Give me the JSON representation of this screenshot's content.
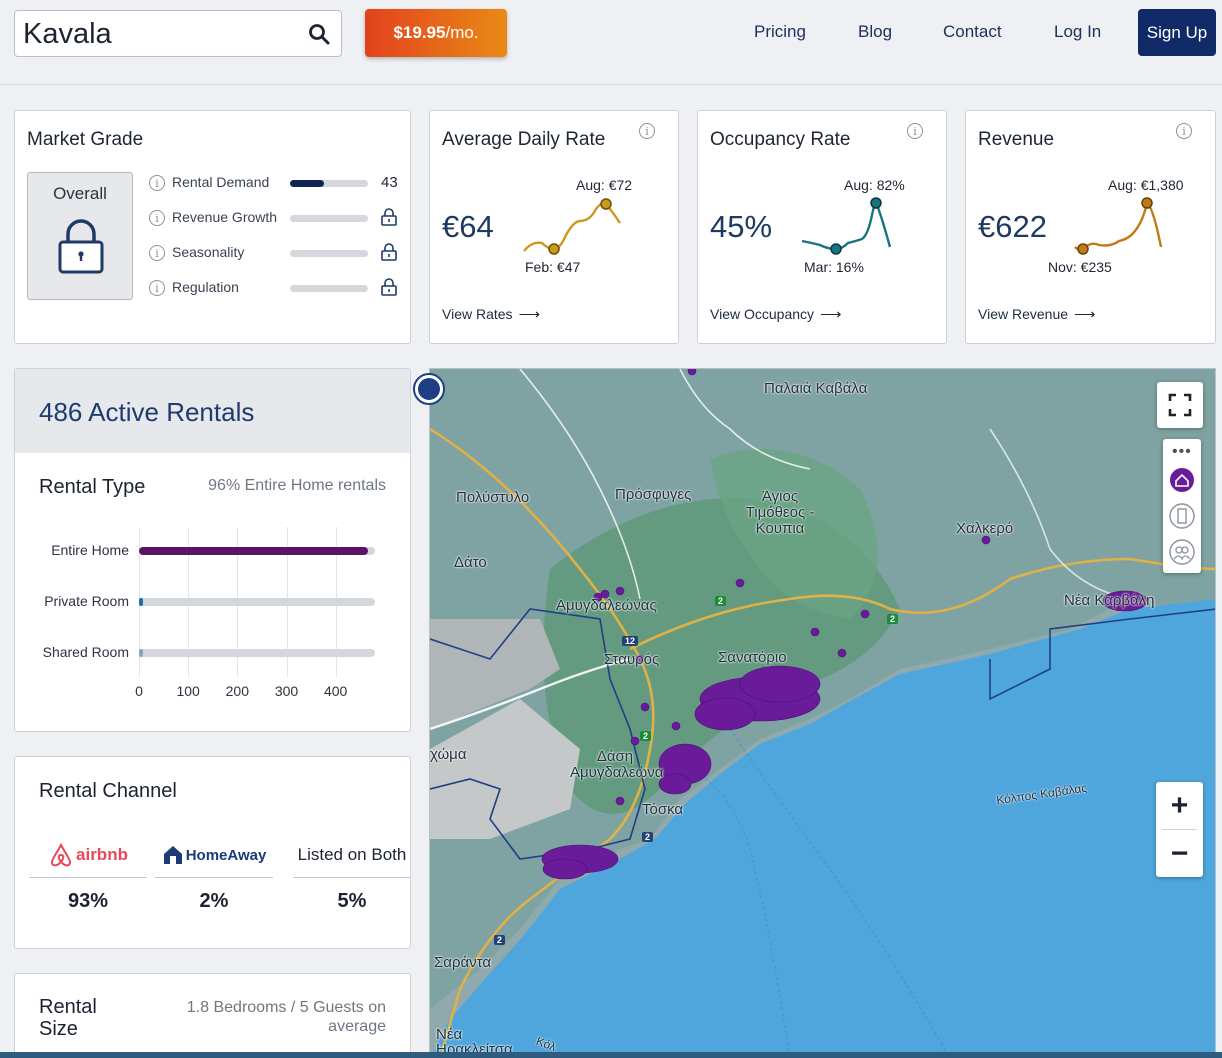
{
  "header": {
    "search_value": "Kavala",
    "price_amount": "$19.95",
    "price_period": "/mo.",
    "nav": [
      "Pricing",
      "Blog",
      "Contact",
      "Log In"
    ],
    "signup_label": "Sign Up"
  },
  "market_grade": {
    "title": "Market Grade",
    "overall_label": "Overall",
    "rows": [
      {
        "label": "Rental Demand",
        "value": "43",
        "fill": 0.43,
        "locked": false
      },
      {
        "label": "Revenue Growth",
        "value": "",
        "fill": 0,
        "locked": true
      },
      {
        "label": "Seasonality",
        "value": "",
        "fill": 0,
        "locked": true
      },
      {
        "label": "Regulation",
        "value": "",
        "fill": 0,
        "locked": true
      }
    ]
  },
  "metrics": [
    {
      "title": "Average Daily Rate",
      "value": "€64",
      "high_label": "Aug: €72",
      "low_label": "Feb: €47",
      "link": "View Rates",
      "color": "#c99a1e"
    },
    {
      "title": "Occupancy Rate",
      "value": "45%",
      "high_label": "Aug: 82%",
      "low_label": "Mar: 16%",
      "link": "View Occupancy",
      "color": "#18747e"
    },
    {
      "title": "Revenue",
      "value": "€622",
      "high_label": "Aug: €1,380",
      "low_label": "Nov: €235",
      "link": "View Revenue",
      "color": "#c07a18"
    }
  ],
  "rentals": {
    "title": "486 Active Rentals",
    "type_title": "Rental Type",
    "type_sub": "96% Entire Home rentals",
    "chart_data": {
      "type": "bar",
      "categories": [
        "Entire Home",
        "Private Room",
        "Shared Room"
      ],
      "values": [
        466,
        8,
        1
      ],
      "xlim": [
        0,
        480
      ],
      "xticks": [
        "0",
        "100",
        "200",
        "300",
        "400"
      ],
      "colors": [
        "#5a1466",
        "#1c6fb0",
        "#7ea8c8"
      ]
    },
    "channel_title": "Rental Channel",
    "channels": [
      {
        "name": "airbnb",
        "value": "93%"
      },
      {
        "name": "HomeAway",
        "value": "2%"
      },
      {
        "name": "Listed on Both",
        "value": "5%"
      }
    ],
    "size_title": "Rental Size",
    "size_sub": "1.8 Bedrooms / 5 Guests on average"
  },
  "map": {
    "labels": [
      "Παλαιά Καβάλα",
      "Πολύστυλο",
      "Πρόσφυγες",
      "Άγιος Τιμόθεος - Κουπια",
      "Χαλκερό",
      "Δάτο",
      "Αμυγδαλεώνας",
      "Νέα Καρβάλη",
      "Σταυρός",
      "Σανατόριο",
      "χώμα",
      "Δάση Αμυγδαλεώνα",
      "Τόσκα",
      "Κόλπος Καβάλας",
      "Σαράντα",
      "Νέα Ηρακλείτσα",
      "Κόλ"
    ],
    "road_numbers": [
      "12",
      "2",
      "2",
      "2",
      "2",
      "2"
    ],
    "zoom_in": "+",
    "zoom_out": "−"
  }
}
